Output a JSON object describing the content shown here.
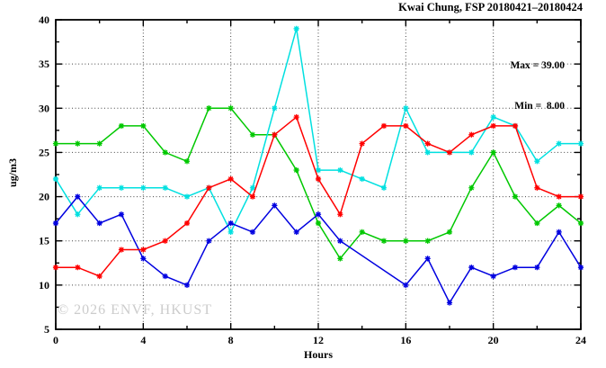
{
  "page": {
    "background": "#ffffff",
    "colors": {
      "axis": "#000000",
      "grid": "#444444",
      "watermark_text": "#cccccc"
    }
  },
  "chart_data": {
    "type": "line",
    "title": "Kwai Chung, FSP 20180421–20180424",
    "xlabel": "Hours",
    "ylabel": "ug/m3",
    "xlim": [
      0,
      24
    ],
    "ylim": [
      5,
      40
    ],
    "x_major_ticks": [
      0,
      4,
      8,
      12,
      16,
      20,
      24
    ],
    "x_minor_ticks": [
      2,
      6,
      10,
      14,
      18,
      22
    ],
    "y_major_ticks": [
      5,
      10,
      15,
      20,
      25,
      30,
      35,
      40
    ],
    "y_minor_ticks": [
      7.5,
      12.5,
      17.5,
      22.5,
      27.5,
      32.5,
      37.5
    ],
    "grid": {
      "style": "dotted",
      "x_at": [
        4,
        8,
        12,
        16,
        20
      ],
      "y_at": [
        10,
        15,
        20,
        25,
        30,
        35
      ]
    },
    "legend_position": "top-right-inside",
    "annotations": {
      "max_label": "Max = 39.00",
      "min_label": "Min =  8.00"
    },
    "watermark": "© 2026 ENVF, HKUST",
    "x": [
      0,
      1,
      2,
      3,
      4,
      5,
      6,
      7,
      8,
      9,
      10,
      11,
      12,
      13,
      14,
      15,
      16,
      17,
      18,
      19,
      20,
      21,
      22,
      23,
      24
    ],
    "series": [
      {
        "name": "green",
        "color": "#00c800",
        "values": [
          26,
          26,
          26,
          28,
          28,
          25,
          24,
          30,
          30,
          27,
          27,
          23,
          17,
          13,
          16,
          15,
          15,
          15,
          16,
          21,
          25,
          20,
          17,
          19,
          17
        ]
      },
      {
        "name": "cyan",
        "color": "#00e0e0",
        "values": [
          22,
          18,
          21,
          21,
          21,
          21,
          20,
          21,
          16,
          21,
          30,
          39,
          23,
          23,
          22,
          21,
          30,
          25,
          25,
          25,
          29,
          28,
          24,
          26,
          26
        ]
      },
      {
        "name": "blue",
        "color": "#0000e0",
        "values": [
          17,
          20,
          17,
          18,
          13,
          11,
          10,
          15,
          17,
          16,
          19,
          16,
          18,
          15,
          null,
          null,
          10,
          13,
          8,
          12,
          11,
          12,
          12,
          16,
          12
        ]
      },
      {
        "name": "red",
        "color": "#ff0000",
        "values": [
          12,
          12,
          11,
          14,
          14,
          15,
          17,
          21,
          22,
          20,
          27,
          29,
          22,
          18,
          26,
          28,
          28,
          26,
          25,
          27,
          28,
          28,
          21,
          20,
          20
        ]
      }
    ]
  }
}
